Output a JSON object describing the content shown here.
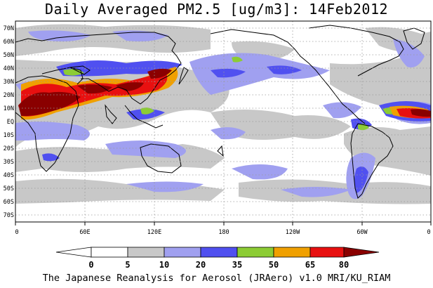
{
  "title": "Daily Averaged PM2.5 [ug/m3]: 14Feb2012",
  "caption": "The Japanese Reanalysis for Aerosol (JRAero) v1.0 MRI/KU_RIAM",
  "map": {
    "lat_labels": [
      "70N",
      "60N",
      "50N",
      "40N",
      "30N",
      "20N",
      "10N",
      "EQ",
      "10S",
      "20S",
      "30S",
      "40S",
      "50S",
      "60S",
      "70S"
    ],
    "lon_labels": [
      "0",
      "60E",
      "120E",
      "180",
      "120W",
      "60W",
      "0"
    ],
    "gridlines": true,
    "projection": "cylindrical"
  },
  "colorbar": {
    "labels": [
      "0",
      "5",
      "10",
      "20",
      "35",
      "50",
      "65",
      "80"
    ],
    "colors": [
      "#ffffff",
      "#c8c8c8",
      "#a0a0f0",
      "#5050f0",
      "#8ccc34",
      "#f0a000",
      "#e81010",
      "#8a0000"
    ]
  },
  "fields": {
    "gray": "#c8c8c8",
    "light_blue": "#a0a0f0",
    "blue": "#5050f0",
    "green": "#8ccc34",
    "orange": "#f0a000",
    "red": "#e81010",
    "dark_red": "#8a0000"
  }
}
